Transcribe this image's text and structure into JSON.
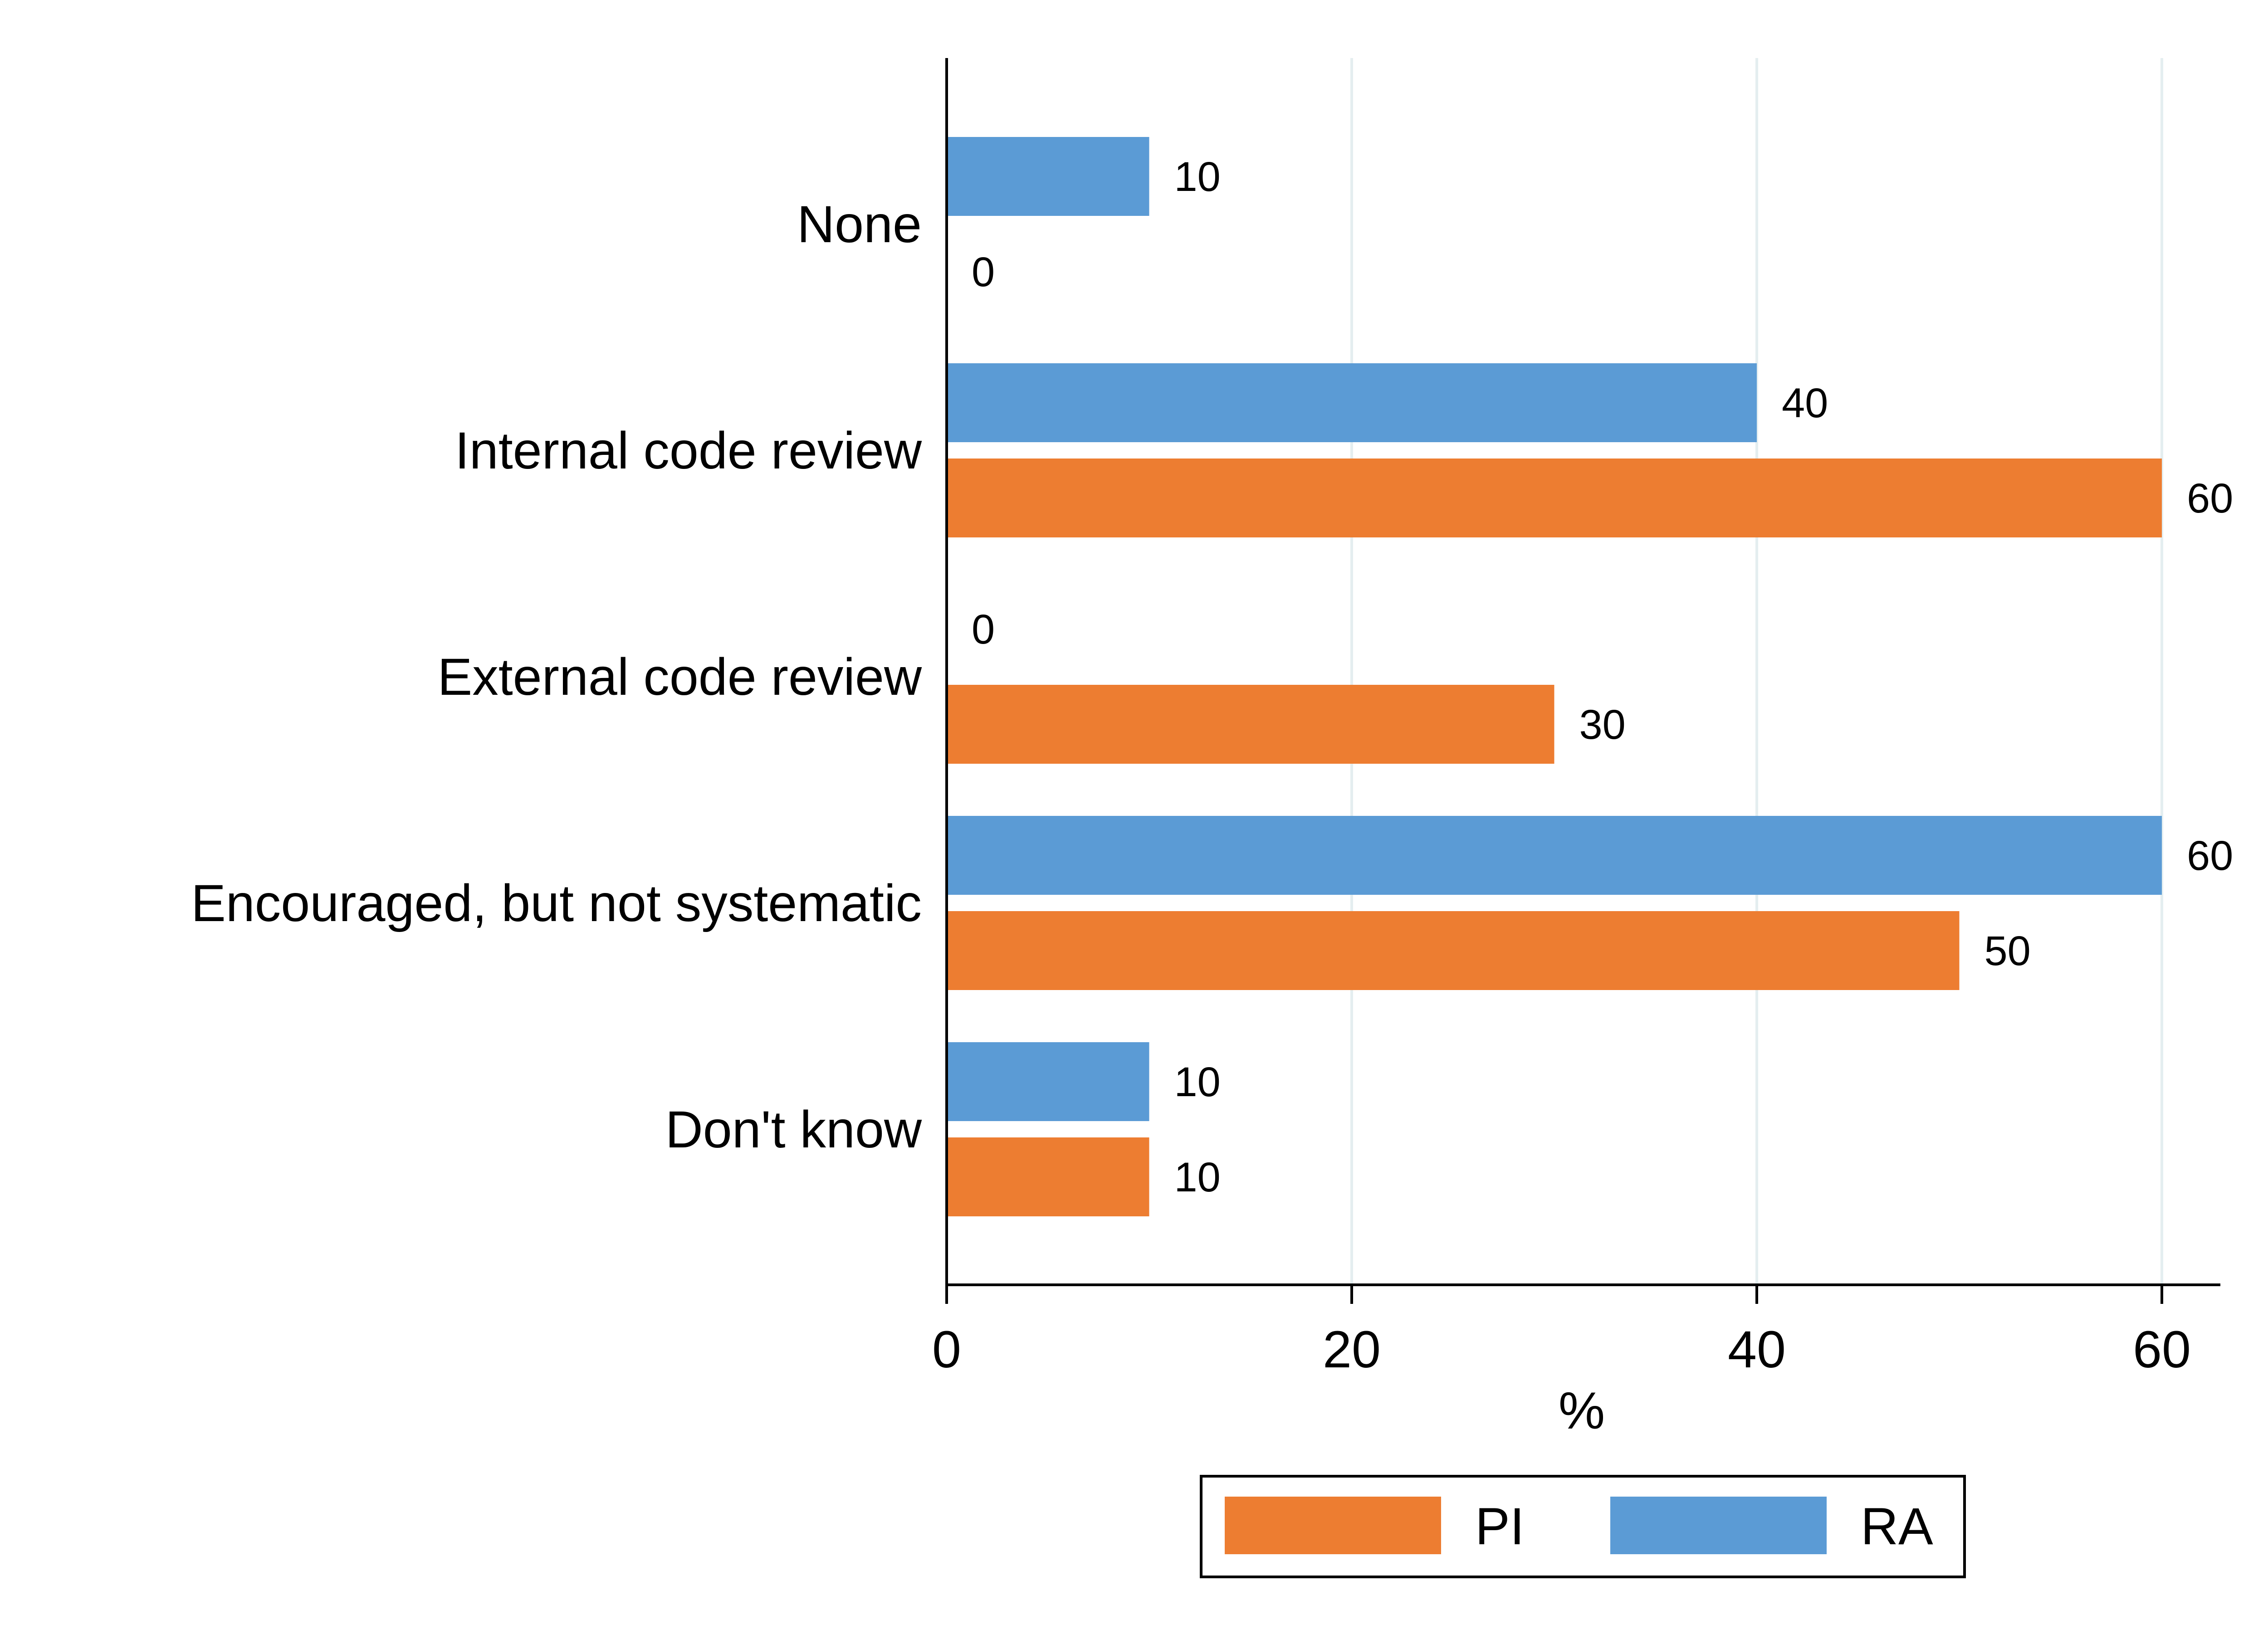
{
  "chart_data": {
    "type": "bar",
    "orientation": "horizontal",
    "categories": [
      "None",
      "Internal code review",
      "External code review",
      "Encouraged, but not systematic",
      "Don't know"
    ],
    "series": [
      {
        "name": "RA",
        "values": [
          10,
          40,
          0,
          60,
          10
        ]
      },
      {
        "name": "PI",
        "values": [
          0,
          60,
          30,
          50,
          10
        ]
      }
    ],
    "series_colors": {
      "RA": "#5b9bd5",
      "PI": "#ed7d31"
    },
    "xlabel": "%",
    "xlim": [
      0,
      63
    ],
    "xticks": [
      0,
      20,
      40,
      60
    ],
    "grid": "vertical",
    "grid_color": "#e4eef0",
    "legend": {
      "position": "bottom-center",
      "order": [
        "PI",
        "RA"
      ]
    },
    "data_labels": true
  }
}
